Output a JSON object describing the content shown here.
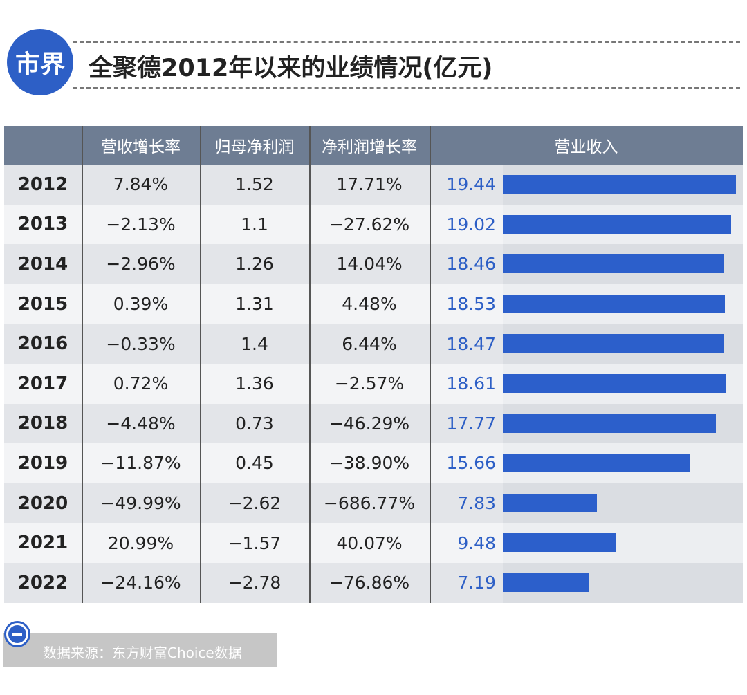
{
  "header": {
    "logo": "市界",
    "title": "全聚德2012年以来的业绩情况(亿元)"
  },
  "table": {
    "columns": [
      "营收增长率",
      "归母净利润",
      "净利润增长率",
      "营业收入"
    ],
    "rows": [
      {
        "year": "2012",
        "revenue_growth": "7.84%",
        "net_profit": "1.52",
        "net_profit_growth": "17.71%",
        "revenue": 19.44
      },
      {
        "year": "2013",
        "revenue_growth": "−2.13%",
        "net_profit": "1.1",
        "net_profit_growth": "−27.62%",
        "revenue": 19.02
      },
      {
        "year": "2014",
        "revenue_growth": "−2.96%",
        "net_profit": "1.26",
        "net_profit_growth": "14.04%",
        "revenue": 18.46
      },
      {
        "year": "2015",
        "revenue_growth": "0.39%",
        "net_profit": "1.31",
        "net_profit_growth": "4.48%",
        "revenue": 18.53
      },
      {
        "year": "2016",
        "revenue_growth": "−0.33%",
        "net_profit": "1.4",
        "net_profit_growth": "6.44%",
        "revenue": 18.47
      },
      {
        "year": "2017",
        "revenue_growth": "0.72%",
        "net_profit": "1.36",
        "net_profit_growth": "−2.57%",
        "revenue": 18.61
      },
      {
        "year": "2018",
        "revenue_growth": "−4.48%",
        "net_profit": "0.73",
        "net_profit_growth": "−46.29%",
        "revenue": 17.77
      },
      {
        "year": "2019",
        "revenue_growth": "−11.87%",
        "net_profit": "0.45",
        "net_profit_growth": "−38.90%",
        "revenue": 15.66
      },
      {
        "year": "2020",
        "revenue_growth": "−49.99%",
        "net_profit": "−2.62",
        "net_profit_growth": "−686.77%",
        "revenue": 7.83
      },
      {
        "year": "2021",
        "revenue_growth": "20.99%",
        "net_profit": "−1.57",
        "net_profit_growth": "40.07%",
        "revenue": 9.48
      },
      {
        "year": "2022",
        "revenue_growth": "−24.16%",
        "net_profit": "−2.78",
        "net_profit_growth": "−76.86%",
        "revenue": 7.19
      }
    ]
  },
  "footer": {
    "source": "数据来源：东方财富Choice数据"
  }
}
